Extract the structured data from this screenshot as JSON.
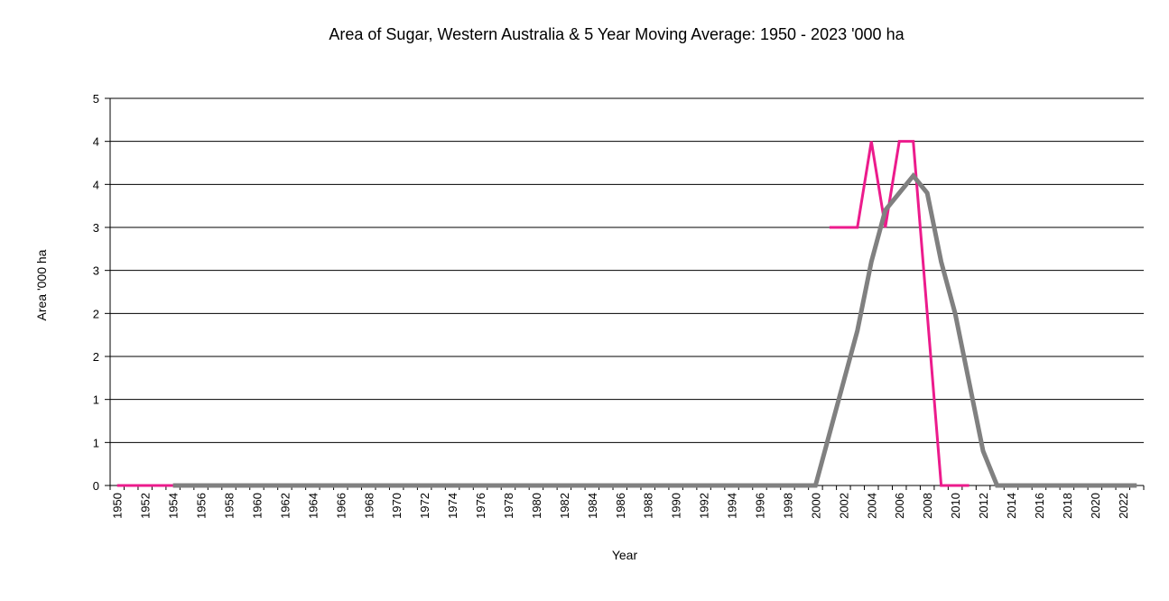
{
  "chart_data": {
    "type": "line",
    "title": "Area of Sugar, Western Australia & 5 Year Moving Average: 1950 - 2023 '000 ha",
    "xlabel": "Year",
    "ylabel": "Area '000 ha",
    "x_start": 1950,
    "x_end": 2023,
    "x_tick_labels": [
      "1950",
      "1952",
      "1954",
      "1956",
      "1958",
      "1960",
      "1962",
      "1964",
      "1966",
      "1968",
      "1970",
      "1972",
      "1974",
      "1976",
      "1978",
      "1980",
      "1982",
      "1984",
      "1986",
      "1988",
      "1990",
      "1992",
      "1994",
      "1996",
      "1998",
      "2000",
      "2002",
      "2004",
      "2006",
      "2008",
      "2010",
      "2012",
      "2014",
      "2016",
      "2018",
      "2020",
      "2022"
    ],
    "y_tick_labels": [
      "0",
      "1",
      "1",
      "2",
      "2",
      "3",
      "3",
      "4",
      "4",
      "5"
    ],
    "ylim": [
      0,
      4.5
    ],
    "grid": true,
    "series": [
      {
        "name": "Area of Sugar",
        "color": "#ec1b8c",
        "x": [
          1950,
          1951,
          1952,
          1953,
          1954,
          null,
          2001,
          2002,
          2003,
          2004,
          2005,
          2006,
          2007,
          2008,
          2009,
          2010,
          2011
        ],
        "y": [
          0,
          0,
          0,
          0,
          0,
          null,
          3.0,
          3.0,
          3.0,
          4.0,
          3.0,
          4.0,
          4.0,
          2.0,
          0,
          0,
          0
        ]
      },
      {
        "name": "5 Year Moving Average",
        "color": "#808080",
        "x": [
          1954,
          1955,
          1956,
          1957,
          1958,
          1959,
          1960,
          1961,
          1962,
          1963,
          1964,
          1965,
          1966,
          1967,
          1968,
          1969,
          1970,
          1971,
          1972,
          1973,
          1974,
          1975,
          1976,
          1977,
          1978,
          1979,
          1980,
          1981,
          1982,
          1983,
          1984,
          1985,
          1986,
          1987,
          1988,
          1989,
          1990,
          1991,
          1992,
          1993,
          1994,
          1995,
          1996,
          1997,
          1998,
          1999,
          2000,
          2001,
          2002,
          2003,
          2004,
          2005,
          2006,
          2007,
          2008,
          2009,
          2010,
          2011,
          2012,
          2013,
          2014,
          2015,
          2016,
          2017,
          2018,
          2019,
          2020,
          2021,
          2022,
          2023
        ],
        "y": [
          0,
          0,
          0,
          0,
          0,
          0,
          0,
          0,
          0,
          0,
          0,
          0,
          0,
          0,
          0,
          0,
          0,
          0,
          0,
          0,
          0,
          0,
          0,
          0,
          0,
          0,
          0,
          0,
          0,
          0,
          0,
          0,
          0,
          0,
          0,
          0,
          0,
          0,
          0,
          0,
          0,
          0,
          0,
          0,
          0,
          0,
          0,
          0.6,
          1.2,
          1.8,
          2.6,
          3.2,
          3.4,
          3.6,
          3.4,
          2.6,
          2.0,
          1.2,
          0.4,
          0,
          0,
          0,
          0,
          0,
          0,
          0,
          0,
          0,
          0,
          0
        ]
      }
    ]
  }
}
